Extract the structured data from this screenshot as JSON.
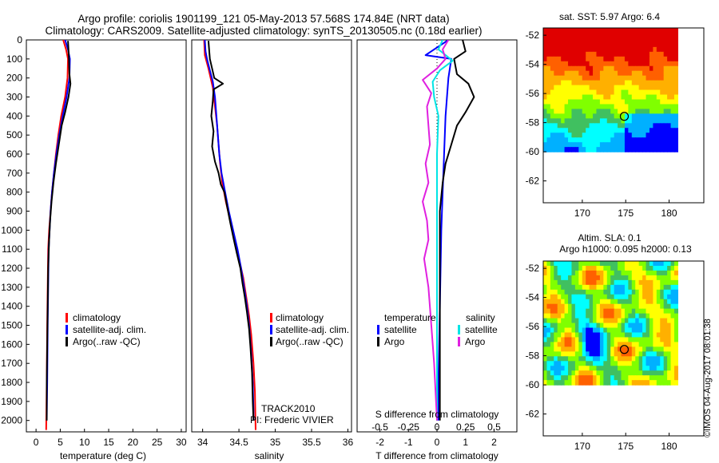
{
  "header": {
    "line1": "Argo profile: coriolis 1901199_121 05-May-2013 57.568S 174.84E (NRT data)",
    "line2": "Climatology: CARS2009. Satellite-adjusted climatology: synTS_20130505.nc (0.18d earlier)"
  },
  "colors": {
    "climatology": "#ff0000",
    "satellite": "#0000ff",
    "argo": "#000000",
    "sat_salinity": "#00e5e5",
    "argo_salinity": "#e020e0"
  },
  "chart_data": [
    {
      "type": "line",
      "panel": "temperature",
      "xlabel": "temperature (deg C)",
      "ylabel": "",
      "xlim": [
        -2,
        31
      ],
      "ylim": [
        2060,
        0
      ],
      "xticks": [
        0,
        5,
        10,
        15,
        20,
        25,
        30
      ],
      "yticks": [
        0,
        100,
        200,
        300,
        400,
        500,
        600,
        700,
        800,
        900,
        1000,
        1100,
        1200,
        1300,
        1400,
        1500,
        1600,
        1700,
        1800,
        1900,
        2000
      ],
      "legend": {
        "position": "lower-center",
        "entries": [
          "climatology",
          "satellite-adj. clim.",
          "Argo(..raw -QC)"
        ]
      },
      "series": [
        {
          "name": "climatology",
          "color": "#ff0000",
          "points": [
            [
              5.6,
              0
            ],
            [
              6.2,
              50
            ],
            [
              6.6,
              100
            ],
            [
              6.5,
              200
            ],
            [
              6.0,
              300
            ],
            [
              5.2,
              400
            ],
            [
              4.6,
              500
            ],
            [
              4.1,
              600
            ],
            [
              3.7,
              700
            ],
            [
              3.3,
              800
            ],
            [
              3.0,
              900
            ],
            [
              2.7,
              1000
            ],
            [
              2.5,
              1100
            ],
            [
              2.4,
              1300
            ],
            [
              2.3,
              1500
            ],
            [
              2.2,
              1800
            ],
            [
              2.1,
              2050
            ]
          ]
        },
        {
          "name": "satellite-adj. clim.",
          "color": "#0000ff",
          "points": [
            [
              6.0,
              0
            ],
            [
              6.6,
              50
            ],
            [
              7.0,
              100
            ],
            [
              6.9,
              200
            ],
            [
              6.3,
              300
            ],
            [
              5.5,
              400
            ],
            [
              4.8,
              500
            ],
            [
              4.2,
              600
            ],
            [
              3.7,
              700
            ],
            [
              3.3,
              800
            ],
            [
              3.0,
              900
            ],
            [
              2.8,
              1000
            ],
            [
              2.6,
              1100
            ],
            [
              2.5,
              1300
            ],
            [
              2.4,
              1500
            ],
            [
              2.3,
              1800
            ],
            [
              2.2,
              2000
            ]
          ]
        },
        {
          "name": "Argo(..raw -QC)",
          "color": "#000000",
          "points": [
            [
              6.6,
              5
            ],
            [
              6.7,
              50
            ],
            [
              6.8,
              100
            ],
            [
              6.9,
              180
            ],
            [
              7.1,
              230
            ],
            [
              6.7,
              300
            ],
            [
              6.0,
              380
            ],
            [
              5.3,
              450
            ],
            [
              4.7,
              550
            ],
            [
              4.1,
              650
            ],
            [
              3.6,
              750
            ],
            [
              3.2,
              850
            ],
            [
              2.9,
              950
            ],
            [
              2.7,
              1050
            ],
            [
              2.5,
              1200
            ],
            [
              2.4,
              1400
            ],
            [
              2.3,
              1600
            ],
            [
              2.2,
              1800
            ],
            [
              2.2,
              2000
            ]
          ]
        }
      ]
    },
    {
      "type": "line",
      "panel": "salinity",
      "xlabel": "salinity",
      "ylabel": "",
      "xlim": [
        33.85,
        36.05
      ],
      "ylim": [
        2060,
        0
      ],
      "xticks": [
        34,
        34.5,
        35,
        35.5,
        36
      ],
      "legend": {
        "position": "lower-right",
        "entries": [
          "climatology",
          "satellite-adj. clim.",
          "Argo(..raw -QC)"
        ]
      },
      "annotations": [
        "TRACK2010",
        "PI: Frederic VIVIER"
      ],
      "series": [
        {
          "name": "climatology",
          "color": "#ff0000",
          "points": [
            [
              34.02,
              0
            ],
            [
              34.03,
              80
            ],
            [
              34.08,
              150
            ],
            [
              34.14,
              250
            ],
            [
              34.17,
              350
            ],
            [
              34.2,
              450
            ],
            [
              34.22,
              550
            ],
            [
              34.24,
              650
            ],
            [
              34.27,
              750
            ],
            [
              34.32,
              850
            ],
            [
              34.38,
              950
            ],
            [
              34.44,
              1050
            ],
            [
              34.5,
              1150
            ],
            [
              34.56,
              1250
            ],
            [
              34.6,
              1350
            ],
            [
              34.64,
              1450
            ],
            [
              34.67,
              1550
            ],
            [
              34.7,
              1700
            ],
            [
              34.72,
              1850
            ],
            [
              34.73,
              2050
            ]
          ]
        },
        {
          "name": "satellite-adj. clim.",
          "color": "#0000ff",
          "points": [
            [
              34.03,
              0
            ],
            [
              34.04,
              60
            ],
            [
              34.06,
              100
            ],
            [
              34.1,
              160
            ],
            [
              34.14,
              220
            ],
            [
              34.17,
              300
            ],
            [
              34.19,
              400
            ],
            [
              34.21,
              500
            ],
            [
              34.23,
              600
            ],
            [
              34.26,
              700
            ],
            [
              34.31,
              800
            ],
            [
              34.36,
              900
            ],
            [
              34.42,
              1000
            ],
            [
              34.48,
              1100
            ],
            [
              34.53,
              1200
            ],
            [
              34.57,
              1300
            ],
            [
              34.61,
              1400
            ],
            [
              34.64,
              1500
            ],
            [
              34.67,
              1650
            ],
            [
              34.69,
              1800
            ],
            [
              34.7,
              1950
            ],
            [
              34.7,
              2000
            ]
          ]
        },
        {
          "name": "Argo(..raw -QC)",
          "color": "#000000",
          "points": [
            [
              34.08,
              5
            ],
            [
              34.1,
              100
            ],
            [
              34.13,
              150
            ],
            [
              34.16,
              200
            ],
            [
              34.28,
              230
            ],
            [
              34.15,
              260
            ],
            [
              34.14,
              320
            ],
            [
              34.12,
              400
            ],
            [
              34.15,
              480
            ],
            [
              34.13,
              560
            ],
            [
              34.17,
              640
            ],
            [
              34.22,
              700
            ],
            [
              34.25,
              760
            ],
            [
              34.3,
              800
            ],
            [
              34.34,
              880
            ],
            [
              34.38,
              960
            ],
            [
              34.43,
              1050
            ],
            [
              34.47,
              1120
            ],
            [
              34.52,
              1200
            ],
            [
              34.55,
              1280
            ],
            [
              34.58,
              1350
            ],
            [
              34.61,
              1430
            ],
            [
              34.64,
              1520
            ],
            [
              34.66,
              1620
            ],
            [
              34.68,
              1750
            ],
            [
              34.69,
              1900
            ],
            [
              34.7,
              2000
            ]
          ]
        }
      ]
    },
    {
      "type": "line",
      "panel": "difference",
      "xlabel": "T difference from climatology",
      "xlabel2": "S difference from climatology",
      "xlim": [
        -2.8,
        2.8
      ],
      "ylim": [
        2060,
        0
      ],
      "xticks": [
        -2,
        -1,
        0,
        1,
        2
      ],
      "xticks2": [
        "-0.5",
        "-0.25",
        "0",
        "0.25",
        "0.5"
      ],
      "legend": {
        "position": "lower-center",
        "temperature_title": "temperature",
        "salinity_title": "salinity",
        "entries": [
          "satellite",
          "Argo",
          "satellite",
          "Argo"
        ]
      },
      "series": [
        {
          "name": "temperature satellite",
          "color": "#0000ff",
          "points": [
            [
              0.4,
              0
            ],
            [
              -0.4,
              80
            ],
            [
              0.5,
              100
            ],
            [
              0.4,
              200
            ],
            [
              0.3,
              400
            ],
            [
              0.25,
              600
            ],
            [
              0.2,
              800
            ],
            [
              0.15,
              1000
            ],
            [
              0.1,
              1400
            ],
            [
              0.05,
              1800
            ],
            [
              0.05,
              2000
            ]
          ]
        },
        {
          "name": "temperature Argo",
          "color": "#000000",
          "points": [
            [
              0.9,
              0
            ],
            [
              1.0,
              60
            ],
            [
              0.6,
              100
            ],
            [
              0.7,
              180
            ],
            [
              1.1,
              230
            ],
            [
              1.3,
              300
            ],
            [
              1.0,
              380
            ],
            [
              0.7,
              450
            ],
            [
              0.5,
              550
            ],
            [
              0.3,
              650
            ],
            [
              0.2,
              750
            ],
            [
              0.1,
              900
            ],
            [
              0.1,
              1200
            ],
            [
              0.1,
              1600
            ],
            [
              0.1,
              2000
            ]
          ]
        },
        {
          "name": "salinity satellite",
          "color": "#00e5e5",
          "points": [
            [
              0.2,
              0
            ],
            [
              0.05,
              50
            ],
            [
              0.55,
              110
            ],
            [
              0.1,
              160
            ],
            [
              -0.15,
              220
            ],
            [
              -0.1,
              300
            ],
            [
              0.05,
              400
            ],
            [
              0.0,
              600
            ],
            [
              0.0,
              900
            ],
            [
              0.0,
              1200
            ],
            [
              0.0,
              1600
            ],
            [
              0.0,
              2000
            ]
          ]
        },
        {
          "name": "salinity Argo",
          "color": "#e020e0",
          "points": [
            [
              0.4,
              0
            ],
            [
              0.2,
              50
            ],
            [
              0.3,
              100
            ],
            [
              0.0,
              150
            ],
            [
              -0.5,
              210
            ],
            [
              -0.2,
              280
            ],
            [
              -0.35,
              350
            ],
            [
              -0.3,
              450
            ],
            [
              -0.25,
              550
            ],
            [
              -0.4,
              650
            ],
            [
              -0.3,
              750
            ],
            [
              -0.5,
              850
            ],
            [
              -0.35,
              950
            ],
            [
              -0.3,
              1050
            ],
            [
              -0.45,
              1150
            ],
            [
              -0.3,
              1300
            ],
            [
              -0.2,
              1500
            ],
            [
              -0.1,
              1700
            ],
            [
              0.0,
              2000
            ]
          ]
        }
      ]
    },
    {
      "type": "heatmap",
      "panel": "sst-map",
      "title": "sat. SST: 5.97  Argo: 6.4",
      "xlim": [
        165.5,
        184
      ],
      "ylim": [
        -63.5,
        -51.5
      ],
      "data_xlim": [
        165.5,
        181
      ],
      "data_ylim": [
        -60,
        -51.5
      ],
      "xticks": [
        170,
        175,
        180
      ],
      "yticks": [
        -52,
        -54,
        -56,
        -58,
        -60,
        -62
      ],
      "argo_location": [
        174.84,
        -57.568
      ],
      "colormap": [
        "#0000ff",
        "#00b0ff",
        "#00ffff",
        "#40c060",
        "#80ff00",
        "#ffff00",
        "#ffb000",
        "#ff6000",
        "#e00000"
      ]
    },
    {
      "type": "heatmap",
      "panel": "sla-map",
      "title": "Altim. SLA: 0.1",
      "subtitle": "Argo h1000: 0.095 h2000: 0.13",
      "xlim": [
        165.5,
        184
      ],
      "ylim": [
        -63.5,
        -51.5
      ],
      "data_xlim": [
        165.5,
        181
      ],
      "data_ylim": [
        -60,
        -51.5
      ],
      "xticks": [
        170,
        175,
        180
      ],
      "yticks": [
        -52,
        -54,
        -56,
        -58,
        -60,
        -62
      ],
      "argo_location": [
        174.84,
        -57.568
      ],
      "colormap": [
        "#0000ff",
        "#00b0ff",
        "#00ffff",
        "#40c060",
        "#80ff00",
        "#ffff00",
        "#ffb000",
        "#ff6000",
        "#e00000"
      ]
    }
  ],
  "footer": {
    "stamp": "©IMOS 04-Aug-2017 08:01:38"
  }
}
